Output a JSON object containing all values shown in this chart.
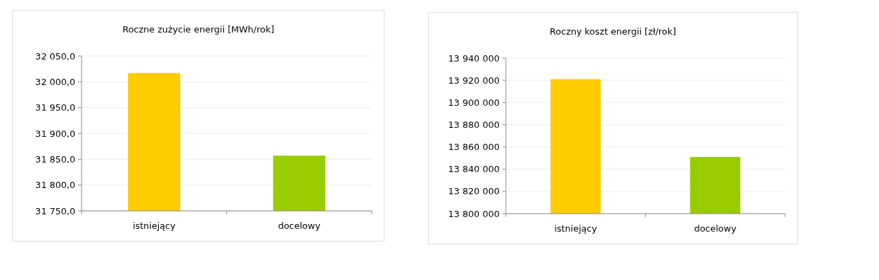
{
  "chart_data": [
    {
      "type": "bar",
      "title": "Roczne zużycie energii [MWh/rok]",
      "categories": [
        "istniejący",
        "docelowy"
      ],
      "values": [
        32017,
        31857
      ],
      "colors": [
        "#ffcc00",
        "#99cc00"
      ],
      "ylim": [
        31750,
        32050
      ],
      "yticks": [
        {
          "value": 31750,
          "label": "31 750,0"
        },
        {
          "value": 31800,
          "label": "31 800,0"
        },
        {
          "value": 31850,
          "label": "31 850,0"
        },
        {
          "value": 31900,
          "label": "31 900,0"
        },
        {
          "value": 31950,
          "label": "31 950,0"
        },
        {
          "value": 32000,
          "label": "32 000,0"
        },
        {
          "value": 32050,
          "label": "32 050,0"
        }
      ],
      "grid": "y"
    },
    {
      "type": "bar",
      "title": "Roczny koszt energii [zł/rok]",
      "categories": [
        "istniejący",
        "docelowy"
      ],
      "values": [
        13921000,
        13851000
      ],
      "colors": [
        "#ffcc00",
        "#99cc00"
      ],
      "ylim": [
        13800000,
        13940000
      ],
      "yticks": [
        {
          "value": 13800000,
          "label": "13 800 000"
        },
        {
          "value": 13820000,
          "label": "13 820 000"
        },
        {
          "value": 13840000,
          "label": "13 840 000"
        },
        {
          "value": 13860000,
          "label": "13 860 000"
        },
        {
          "value": 13880000,
          "label": "13 880 000"
        },
        {
          "value": 13900000,
          "label": "13 900 000"
        },
        {
          "value": 13920000,
          "label": "13 920 000"
        },
        {
          "value": 13940000,
          "label": "13 940 000"
        }
      ],
      "grid": "y"
    }
  ]
}
